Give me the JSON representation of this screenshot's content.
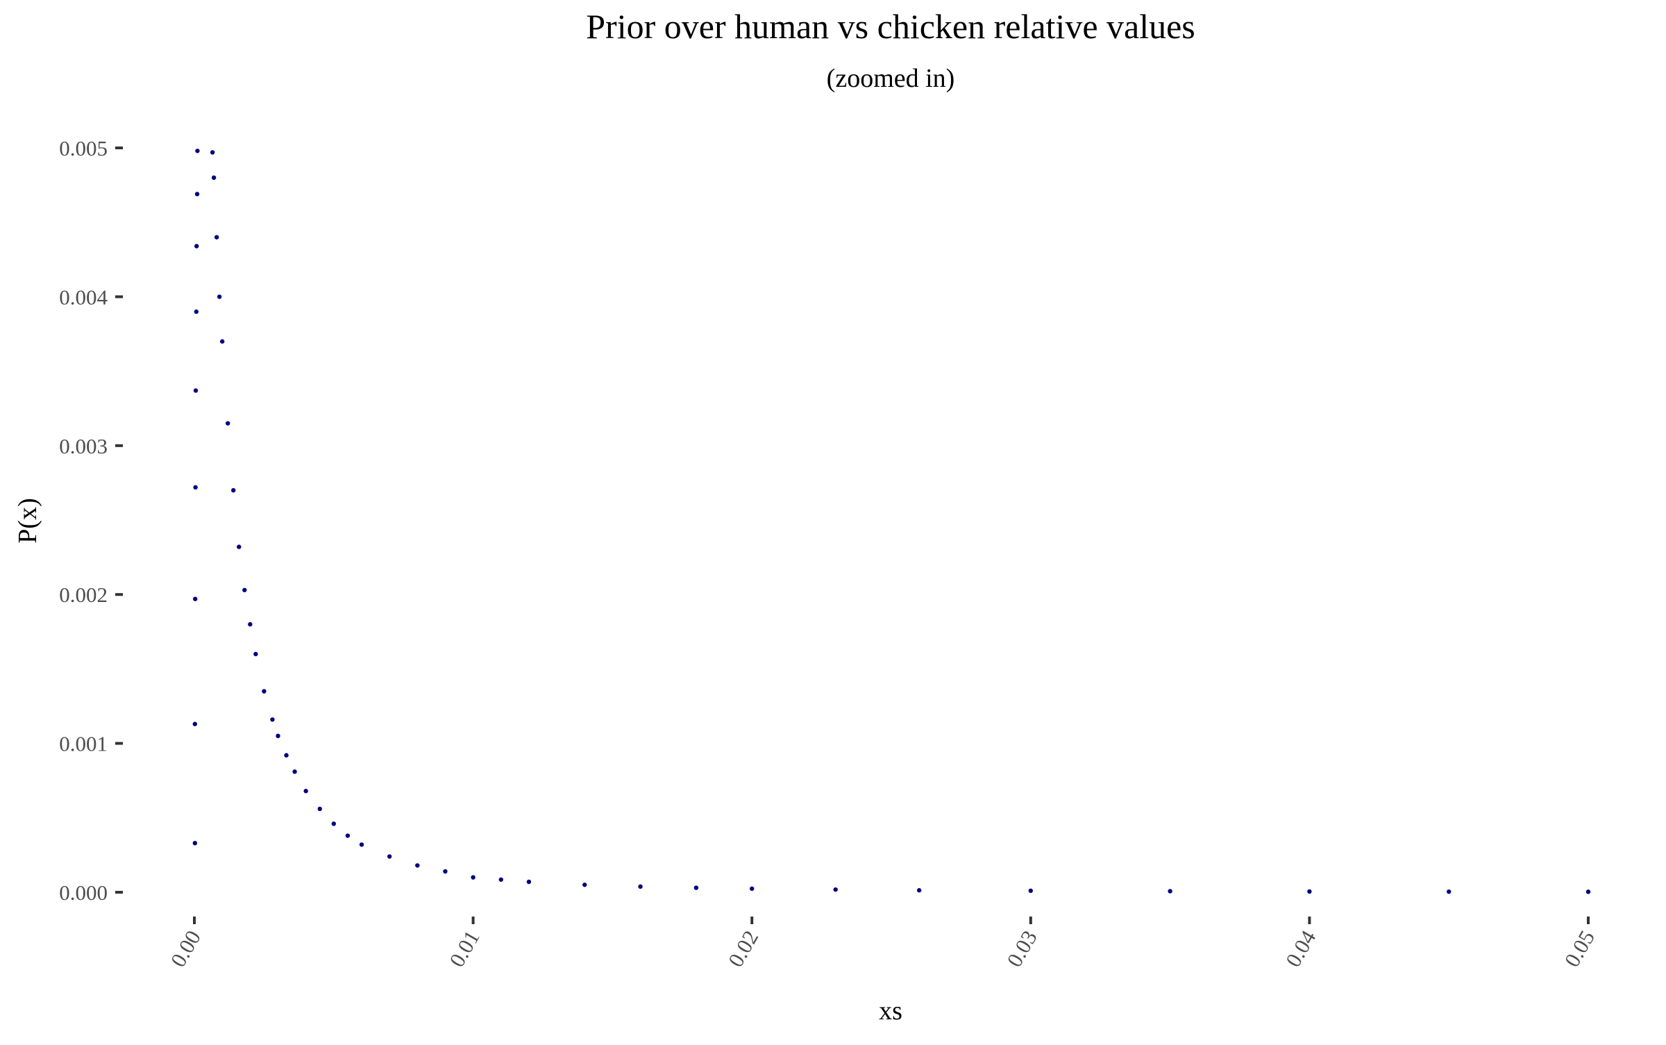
{
  "chart_data": {
    "type": "scatter",
    "title": "Prior over human vs chicken relative values",
    "subtitle": "(zoomed in)",
    "xlabel": "xs",
    "ylabel": "P(x)",
    "xlim": [
      0,
      0.05
    ],
    "ylim": [
      0,
      0.005
    ],
    "x_ticks": [
      "0.00",
      "0.01",
      "0.02",
      "0.03",
      "0.04",
      "0.05"
    ],
    "y_ticks": [
      "0.000",
      "0.001",
      "0.002",
      "0.003",
      "0.004",
      "0.005"
    ],
    "grid": false,
    "legend": "none",
    "point_color": "#000080",
    "series": [
      {
        "x": [
          2e-05,
          2e-05,
          3e-05,
          4e-05,
          5e-05,
          7e-05,
          8e-05,
          0.0001,
          0.00011,
          0.00065,
          0.0007,
          0.0008,
          0.0009,
          0.001,
          0.0012,
          0.0014,
          0.0016,
          0.0018,
          0.002,
          0.0022,
          0.0025,
          0.0028,
          0.003,
          0.0033,
          0.0036,
          0.004,
          0.0045,
          0.005,
          0.0055,
          0.006,
          0.007,
          0.008,
          0.009,
          0.01,
          0.011,
          0.012,
          0.014,
          0.016,
          0.018,
          0.02,
          0.023,
          0.026,
          0.03,
          0.035,
          0.04,
          0.045,
          0.05
        ],
        "y": [
          0.00033,
          0.00113,
          0.00197,
          0.00272,
          0.00337,
          0.0039,
          0.00434,
          0.00469,
          0.00498,
          0.00497,
          0.0048,
          0.0044,
          0.004,
          0.0037,
          0.00315,
          0.0027,
          0.00232,
          0.00203,
          0.0018,
          0.0016,
          0.00135,
          0.00116,
          0.00105,
          0.00092,
          0.00081,
          0.00068,
          0.00056,
          0.00046,
          0.00038,
          0.00032,
          0.00024,
          0.00018,
          0.00014,
          0.0001,
          8.5e-05,
          7e-05,
          5e-05,
          3.8e-05,
          3e-05,
          2.4e-05,
          1.8e-05,
          1.3e-05,
          1e-05,
          7e-06,
          5e-06,
          4e-06,
          3e-06
        ]
      }
    ]
  }
}
